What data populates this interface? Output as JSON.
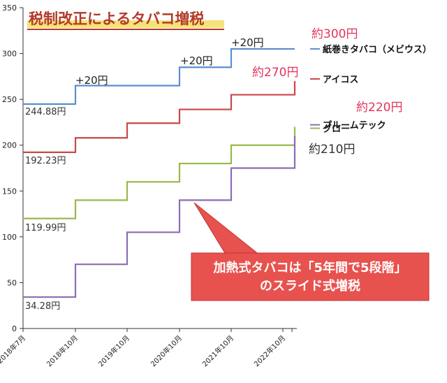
{
  "chart_data": {
    "type": "line",
    "title": "税制改正によるタバコ増税",
    "ylim": [
      0,
      350
    ],
    "y_ticks": [
      0,
      50,
      100,
      150,
      200,
      250,
      300,
      350
    ],
    "x_ticks": [
      "2018年7月",
      "2018年10月",
      "2019年10月",
      "2020年10月",
      "2021年10月",
      "2022年10月"
    ],
    "grid": "none",
    "legend": "right",
    "series": [
      {
        "name": "紙巻きタバコ（メビウス）",
        "color": "#5b8fd0",
        "x": [
          "2018年7月",
          "2018年10月",
          "2019年10月",
          "2020年10月",
          "2021年10月",
          "2022年10月",
          "end"
        ],
        "values": [
          244.88,
          265,
          265,
          285,
          305,
          305,
          305
        ],
        "start_label": "244.88円",
        "end_label": "約300円",
        "end_label_color": "#e4335a"
      },
      {
        "name": "アイコス",
        "color": "#c9474a",
        "x": [
          "2018年7月",
          "2018年10月",
          "2019年10月",
          "2020年10月",
          "2021年10月",
          "2022年10月",
          "end"
        ],
        "values": [
          192.23,
          208,
          224,
          239,
          255,
          255,
          270
        ],
        "start_label": "192.23円",
        "end_label": "約270円",
        "end_label_color": "#e4335a"
      },
      {
        "name": "グロー",
        "color": "#98b94c",
        "x": [
          "2018年7月",
          "2018年10月",
          "2019年10月",
          "2020年10月",
          "2021年10月",
          "2022年10月",
          "end"
        ],
        "values": [
          119.99,
          140,
          160,
          180,
          200,
          200,
          220
        ],
        "start_label": "119.99円",
        "end_label": "約220円",
        "end_label_color": "#e4335a"
      },
      {
        "name": "プルームテック",
        "color": "#8a6db5",
        "x": [
          "2018年7月",
          "2018年10月",
          "2019年10月",
          "2020年10月",
          "2021年10月",
          "2022年10月",
          "end"
        ],
        "values": [
          34.28,
          70,
          105,
          140,
          175,
          175,
          210
        ],
        "start_label": "34.28円",
        "end_label": "約210円",
        "end_label_color": "#333333"
      }
    ],
    "annotations": [
      {
        "text": "+20円",
        "at": "2018年10月"
      },
      {
        "text": "+20円",
        "at": "2020年10月"
      },
      {
        "text": "+20円",
        "at": "2021年10月"
      }
    ],
    "callout": {
      "line1": "加熱式タバコは「5年間で5段階」",
      "line2": "のスライド式増税"
    }
  }
}
